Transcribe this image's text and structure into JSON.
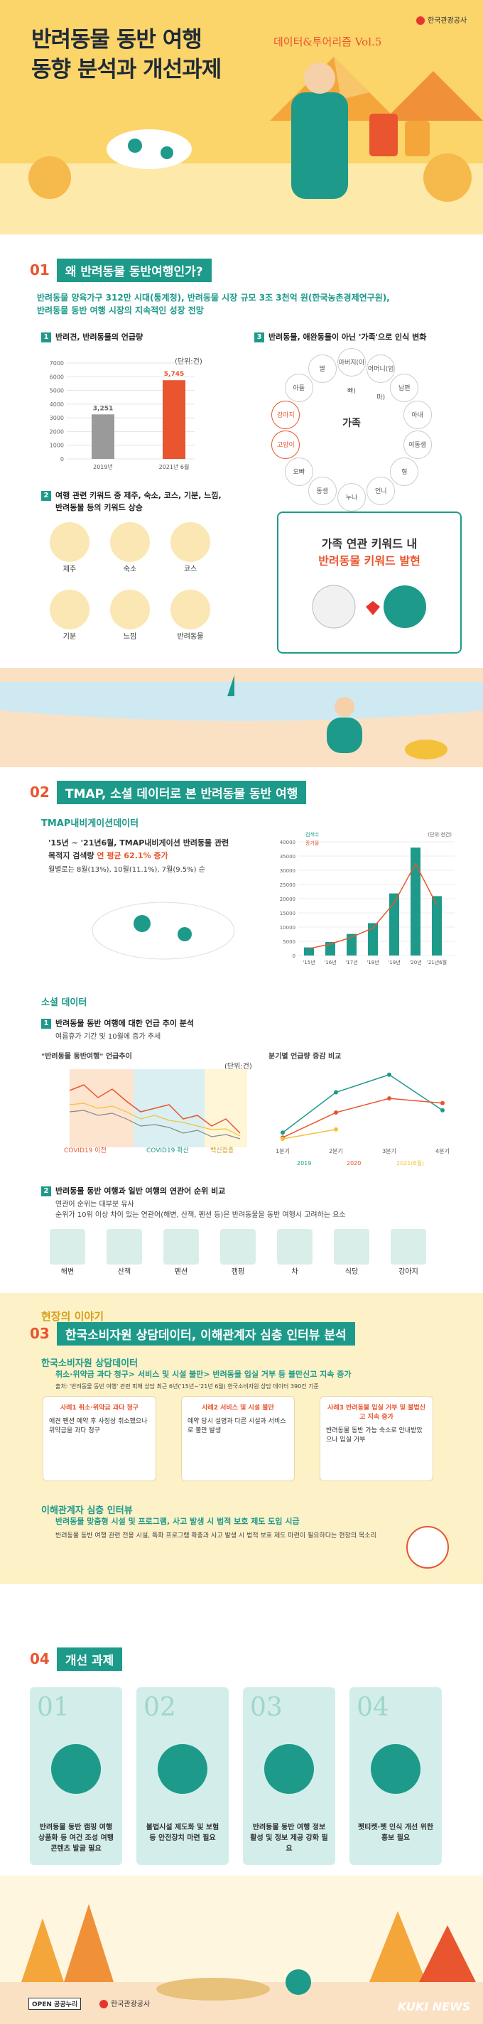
{
  "header": {
    "title_line1": "반려동물 동반 여행",
    "title_line2": "동향 분석과 개선과제",
    "series": "데이터&투어리즘 Vol.5",
    "logo": "한국관광공사"
  },
  "section1": {
    "num": "01",
    "title": "왜 반려동물 동반여행인가?",
    "summary_line1": "반려동물 양육가구 312만 시대(통계청), 반려동물 시장 규모 3조 3천억 원(한국농촌경제연구원),",
    "summary_line2": "반려동물 동반 여행 시장의 지속적인 성장 전망",
    "p1_title": "반려견, 반려동물의 언급량",
    "p1_unit": "(단위:건)",
    "p3_title": "반려동물, 애완동물이 아닌 '가족'으로 인식 변화",
    "p2_title_line1": "여행 관련 키워드 중 제주, 숙소, 코스, 기분, 느낌,",
    "p2_title_line2": "반려동물 등의 키워드 상승",
    "keywords": [
      "제주",
      "숙소",
      "코스",
      "기분",
      "느낌",
      "반려동물"
    ],
    "family_center": "가족",
    "family_words": [
      "아버지(아빠)",
      "어머니(엄마)",
      "남편",
      "아내",
      "여동생",
      "형",
      "언니",
      "누나",
      "동생",
      "오빠",
      "고양이",
      "강아지",
      "아들",
      "딸"
    ],
    "family_note_line1": "가족 연관 키워드 내",
    "family_note_line2": "반려동물 키워드 발현"
  },
  "chart_mentions": {
    "type": "bar",
    "categories": [
      "2019년",
      "2021년 6월"
    ],
    "values": [
      3251,
      5745
    ],
    "value_labels": [
      "3,251",
      "5,745"
    ],
    "yticks": [
      "7000",
      "6000",
      "5000",
      "4000",
      "3000",
      "2000",
      "1000",
      "0"
    ],
    "ylim": [
      0,
      7000
    ]
  },
  "section2": {
    "num": "02",
    "title": "TMAP, 소셜 데이터로 본 반려동물 동반 여행",
    "tmap_head": "TMAP내비게이션데이터",
    "tmap_line1": "'15년 ~ '21년6월, TMAP내비게이션 반려동물 관련",
    "tmap_line2": "목적지 검색량",
    "tmap_highlight": "연 평균 62.1% 증가",
    "tmap_note": "월별로는 8월(13%), 10월(11.1%), 7월(9.5%) 순",
    "social_head": "소셜 데이터",
    "s1_title": "반려동물 동반 여행에 대한 언급 추이 분석",
    "s1_note": "여름휴가 기간 및 10월에 증가 추세",
    "s1_chart_title": "\"반려동물 동반여행\" 언급추이",
    "s1_unit": "(단위:건)",
    "s1_periods": [
      "COVID19 이전",
      "COVID19 확산",
      "백신접종"
    ],
    "s2_chart_title": "분기별 언급량 증감 비교",
    "s2_title": "반려동물 동반 여행과 일반 여행의 연관어 순위 비교",
    "s2_note1": "연관어 순위는 대부분 유사",
    "s2_note2": "순위가 10위 이상 차이 있는 연관어(해변, 산책, 펜션 등)은 반려동물을 동반 여행시 고려하는 요소",
    "s2_items": [
      "해변",
      "산책",
      "펜션",
      "캠핑",
      "차",
      "식당",
      "강아지"
    ]
  },
  "chart_tmap": {
    "type": "bar",
    "categories": [
      "'15년",
      "'16년",
      "'17년",
      "'18년",
      "'19년",
      "'20년",
      "'21년6월"
    ],
    "values": [
      3,
      5,
      8,
      12,
      23,
      40,
      22
    ],
    "legend": [
      "검색수",
      "증가율"
    ],
    "unit": "(단위:천건)",
    "ylim": [
      0,
      40000
    ],
    "yticks": [
      "40000",
      "35000",
      "30000",
      "25000",
      "20000",
      "15000",
      "10000",
      "5000",
      "0"
    ]
  },
  "chart_quarterly": {
    "type": "line",
    "categories": [
      "1분기",
      "2분기",
      "3분기",
      "4분기"
    ],
    "series": [
      {
        "name": "2019",
        "values": [
          11.3,
          71.0,
          97.1,
          44.3
        ]
      },
      {
        "name": "2020",
        "values": [
          4.0,
          41.0,
          62.0,
          55.0
        ]
      },
      {
        "name": "2021(6월)",
        "values": [
          2.0,
          16.0,
          0,
          0
        ]
      }
    ]
  },
  "section3": {
    "pre": "현장의 이야기",
    "num": "03",
    "title": "한국소비자원 상담데이터, 이해관계자 심층 인터뷰 분석",
    "c_head": "한국소비자원 상담데이터",
    "c_line": "취소·위약금 과다 청구> 서비스 및 시설 불만> 반려동물 입실 거부 등 불만신고 지속 증가",
    "c_note": "출처: '반려동물 동반 여행' 관련 피해 상담 최근 6년('15년~'21년 6월) 한국소비자원 상담 데이터 390건 기준",
    "quotes": [
      {
        "q": "사례1 취소·위약금 과다 청구",
        "t": "애견 펜션 예약 후 사정상 취소했으나 위약금을 과다 청구"
      },
      {
        "q": "사례2 서비스 및 시설 불만",
        "t": "예약 당시 설명과 다른 시설과 서비스로 불만 발생"
      },
      {
        "q": "사례3 반려동물 입실 거부 및 불법신고 지속 증가",
        "t": "반려동물 동반 가능 숙소로 안내받았으나 입실 거부"
      }
    ],
    "i_head": "이해관계자 심층 인터뷰",
    "i_line": "반려동물 맞춤형 시설 및 프로그램, 사고 발생 시 법적 보호 제도 도입 시급",
    "i_note": "반려동물 동반 여행 관련 전용 시설, 특화 프로그램 확충과 사고 발생 시 법적 보호 제도 마련이 필요하다는 현장의 목소리"
  },
  "section4": {
    "num": "04",
    "title": "개선 과제",
    "cards": [
      {
        "n": "01",
        "t": "반려동물 동반 캠핑 여행 상품화 등 여건 조성 여행 콘텐츠 발굴 필요"
      },
      {
        "n": "02",
        "t": "불법시설 제도화 및 보험 등 안전장치 마련 필요"
      },
      {
        "n": "03",
        "t": "반려동물 동반 여행 정보 활성 및 정보 제공 강화 필요"
      },
      {
        "n": "04",
        "t": "펫티켓·펫 인식 개선 위한 홍보 필요"
      }
    ]
  },
  "footer": {
    "license": "OPEN 공공누리",
    "logo": "한국관광공사",
    "watermark": "KUKI NEWS"
  }
}
